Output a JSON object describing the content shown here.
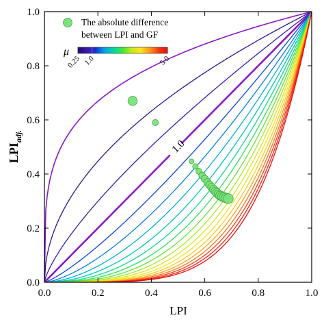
{
  "chart_data": {
    "type": "line",
    "title": "",
    "xlabel": "LPI",
    "ylabel": "LPI",
    "ylabel_sub": "adj.",
    "xlim": [
      0,
      1
    ],
    "ylim": [
      0,
      1
    ],
    "x_ticks": [
      "0.0",
      "0.2",
      "0.4",
      "0.6",
      "0.8",
      "1.0"
    ],
    "y_ticks": [
      "0.0",
      "0.2",
      "0.4",
      "0.6",
      "0.8",
      "1.0"
    ],
    "grid": false,
    "legend": {
      "placement": "top-left",
      "marker_color": "#7be27b",
      "line1": "The absolute difference",
      "line2": "between LPI and GF"
    },
    "colorbar": {
      "label": "μ",
      "tick_labels": [
        "0.25",
        "1.0",
        "5.0"
      ],
      "tick_values": [
        0.25,
        1.0,
        5.0
      ],
      "range": [
        0.25,
        5.0
      ],
      "colors": [
        "#230a6e",
        "#3a1aa8",
        "#0a3ad0",
        "#00a6e6",
        "#00d6a0",
        "#3ee63a",
        "#c6ea18",
        "#fde31c",
        "#ff9a18",
        "#f23a14",
        "#e80c10"
      ]
    },
    "curve_annotation": "1.0",
    "curve_formula": "y = x^mu",
    "series_mu": [
      0.25,
      0.5,
      0.75,
      1.0,
      1.25,
      1.5,
      1.75,
      2.0,
      2.25,
      2.5,
      2.75,
      3.0,
      3.25,
      3.5,
      3.75,
      4.0,
      4.25,
      4.5,
      4.75,
      5.0
    ],
    "highlight_mu": [
      0.25,
      1.0
    ],
    "markers": [
      {
        "x": 0.33,
        "y": 0.67,
        "difference": 0.34
      },
      {
        "x": 0.415,
        "y": 0.59,
        "difference": 0.17
      },
      {
        "x": 0.55,
        "y": 0.447,
        "difference": 0.1
      },
      {
        "x": 0.565,
        "y": 0.428,
        "difference": 0.14
      },
      {
        "x": 0.578,
        "y": 0.41,
        "difference": 0.17
      },
      {
        "x": 0.59,
        "y": 0.395,
        "difference": 0.2
      },
      {
        "x": 0.6,
        "y": 0.382,
        "difference": 0.22
      },
      {
        "x": 0.61,
        "y": 0.37,
        "difference": 0.24
      },
      {
        "x": 0.618,
        "y": 0.36,
        "difference": 0.26
      },
      {
        "x": 0.626,
        "y": 0.351,
        "difference": 0.27
      },
      {
        "x": 0.633,
        "y": 0.343,
        "difference": 0.29
      },
      {
        "x": 0.64,
        "y": 0.336,
        "difference": 0.3
      },
      {
        "x": 0.646,
        "y": 0.33,
        "difference": 0.31
      },
      {
        "x": 0.652,
        "y": 0.325,
        "difference": 0.32
      },
      {
        "x": 0.658,
        "y": 0.32,
        "difference": 0.33
      },
      {
        "x": 0.665,
        "y": 0.317,
        "difference": 0.34
      },
      {
        "x": 0.672,
        "y": 0.314,
        "difference": 0.35
      },
      {
        "x": 0.68,
        "y": 0.311,
        "difference": 0.36
      },
      {
        "x": 0.688,
        "y": 0.309,
        "difference": 0.37
      }
    ]
  }
}
